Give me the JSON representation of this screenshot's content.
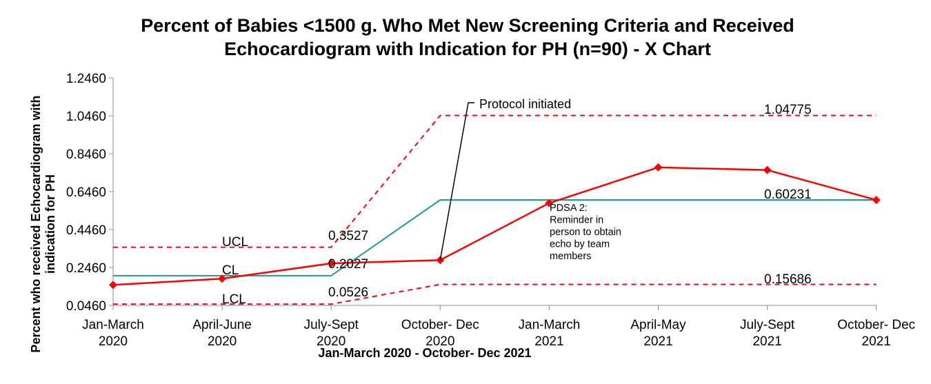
{
  "chart_data": {
    "type": "line",
    "title": [
      "Percent of Babies <1500 g. Who Met New Screening Criteria and Received",
      "Echocardiogram with Indication for PH (n=90) - X Chart"
    ],
    "xlabel": "Jan-March 2020 - October- Dec 2021",
    "ylabel": "Percent who received Echocardiogram with indication for PH",
    "categories": [
      [
        "Jan-March",
        "2020"
      ],
      [
        "April-June",
        "2020"
      ],
      [
        "July-Sept",
        "2020"
      ],
      [
        "October- Dec",
        "2020"
      ],
      [
        "Jan-March",
        "2021"
      ],
      [
        "April-May",
        "2021"
      ],
      [
        "July-Sept",
        "2021"
      ],
      [
        "October- Dec",
        "2021"
      ]
    ],
    "ylim": [
      0.046,
      1.246
    ],
    "yticks": [
      "0.0460",
      "0.2460",
      "0.4460",
      "0.6460",
      "0.8460",
      "1.0460",
      "1.2460"
    ],
    "series": [
      {
        "values": [
          0.154,
          0.187,
          0.268,
          0.285,
          0.586,
          0.774,
          0.76,
          0.602
        ],
        "color": "#ff0000"
      },
      {
        "values": [
          0.2027,
          0.2027,
          0.2027,
          0.60231,
          0.60231,
          0.60231,
          0.60231,
          0.60231
        ],
        "color": "#1a9a9a"
      },
      {
        "values": [
          0.3527,
          0.3527,
          0.3527,
          1.04775,
          1.04775,
          1.04775,
          1.04775,
          1.04775
        ],
        "color": "#ff0000"
      },
      {
        "values": [
          0.0526,
          0.0526,
          0.0526,
          0.15686,
          0.15686,
          0.15686,
          0.15686,
          0.15686
        ],
        "color": "#ff0000"
      }
    ],
    "line_labels": {
      "ucl": "UCL",
      "cl": "CL",
      "lcl": "LCL"
    },
    "value_labels": {
      "ucl_before": "0.3527",
      "cl_before": "0.2027",
      "lcl_before": "0.0526",
      "ucl_after": "1.04775",
      "cl_after": "0.60231",
      "lcl_after": "0.15686"
    },
    "annotations": {
      "protocol": "Protocol initiated",
      "pdsa": [
        "PDSA 2:",
        "Reminder in",
        "person to obtain",
        "echo by team",
        "members"
      ]
    },
    "grid": false
  }
}
